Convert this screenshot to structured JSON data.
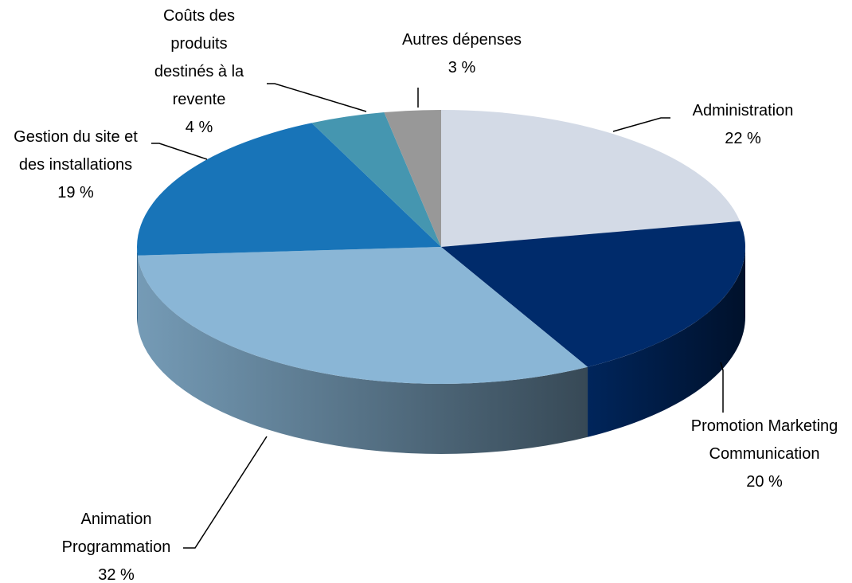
{
  "chart_data": {
    "type": "pie3d",
    "categories": [
      "Administration",
      "Promotion Marketing Communication",
      "Animation Programmation",
      "Gestion du site et des installations",
      "Coûts des produits destinés à la revente",
      "Autres dépenses"
    ],
    "values": [
      22,
      20,
      32,
      19,
      4,
      3
    ],
    "value_labels": [
      "22 %",
      "20 %",
      "32 %",
      "19 %",
      "4 %",
      "3 %"
    ],
    "colors": [
      "#d3dae6",
      "#002b6b",
      "#8ab6d6",
      "#1874b8",
      "#4596b0",
      "#989898"
    ]
  }
}
